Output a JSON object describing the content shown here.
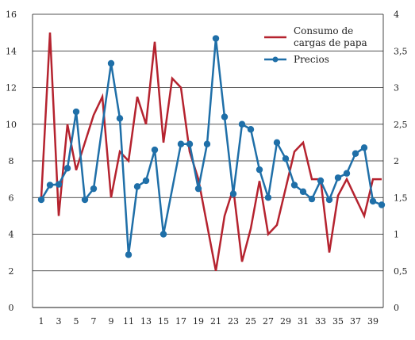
{
  "chart_data": {
    "type": "line",
    "title": "",
    "xlabel": "",
    "ylabel": "",
    "grid": true,
    "legend_position": "top-right",
    "x": [
      1,
      2,
      3,
      4,
      5,
      6,
      7,
      8,
      9,
      10,
      11,
      12,
      13,
      14,
      15,
      16,
      17,
      18,
      19,
      20,
      21,
      22,
      23,
      24,
      25,
      26,
      27,
      28,
      29,
      30,
      31,
      32,
      33,
      34,
      35,
      36,
      37,
      38,
      39,
      40
    ],
    "x_tick_labels": [
      "1",
      "3",
      "5",
      "7",
      "9",
      "11",
      "13",
      "15",
      "17",
      "19",
      "21",
      "23",
      "25",
      "27",
      "29",
      "31",
      "33",
      "35",
      "37",
      "39"
    ],
    "y_left": {
      "lim": [
        0,
        16
      ],
      "ticks": [
        "0",
        "2",
        "4",
        "6",
        "8",
        "10",
        "12",
        "14",
        "16"
      ]
    },
    "y_right": {
      "lim": [
        0,
        4
      ],
      "ticks": [
        "0",
        "0,5",
        "1",
        "1,5",
        "2",
        "2,5",
        "3",
        "3,5",
        "4"
      ]
    },
    "series": [
      {
        "name": "Consumo de cargas de papa",
        "axis": "left",
        "color": "#b5232f",
        "marker": "none",
        "values": [
          6,
          15,
          5,
          10,
          7.5,
          9,
          10.5,
          11.5,
          6,
          8.5,
          8,
          11.5,
          10,
          14.5,
          9,
          12.5,
          12,
          8.5,
          7,
          4.5,
          2,
          5,
          6.5,
          2.5,
          4.3,
          6.9,
          4,
          4.5,
          6.5,
          8.5,
          9,
          7,
          7,
          3,
          6.1,
          7,
          6,
          5,
          7,
          7
        ]
      },
      {
        "name": "Precios",
        "axis": "right",
        "color": "#1f6fa8",
        "marker": "circle",
        "values": [
          1.47,
          1.67,
          1.68,
          1.9,
          2.67,
          1.47,
          1.62,
          null,
          3.33,
          2.58,
          0.72,
          1.65,
          1.73,
          2.15,
          1.0,
          null,
          2.23,
          2.23,
          1.62,
          2.23,
          3.67,
          2.6,
          1.55,
          2.5,
          2.43,
          1.88,
          1.5,
          2.25,
          2.03,
          1.67,
          1.58,
          1.48,
          1.73,
          1.47,
          1.77,
          1.83,
          2.1,
          2.18,
          1.45,
          1.4
        ]
      }
    ]
  }
}
